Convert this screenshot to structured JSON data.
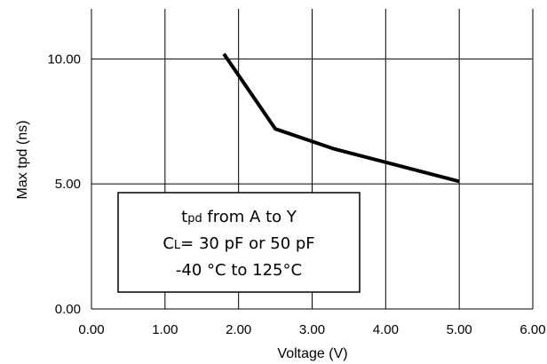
{
  "chart_data": {
    "type": "line",
    "xlabel": "Voltage (V)",
    "ylabel": "Max tpd  (ns)",
    "xlim": [
      0,
      6
    ],
    "ylim": [
      0,
      12
    ],
    "x_ticks": [
      "0.00",
      "1.00",
      "2.00",
      "3.00",
      "4.00",
      "5.00",
      "6.00"
    ],
    "y_ticks": [
      "0.00",
      "5.00",
      "10.00"
    ],
    "grid": true,
    "series": [
      {
        "x": [
          1.8,
          2.5,
          3.3,
          5.0
        ],
        "y": [
          10.2,
          7.2,
          6.4,
          5.1
        ],
        "color": "#000000"
      }
    ],
    "annotation": {
      "line1_main": "t",
      "line1_sub": "pd",
      "line1_rest": " from A to Y",
      "line2_main": "C",
      "line2_sub": "L",
      "line2_rest": "= 30  pF or 50 pF",
      "line3": "-40 °C to 125°C"
    }
  }
}
